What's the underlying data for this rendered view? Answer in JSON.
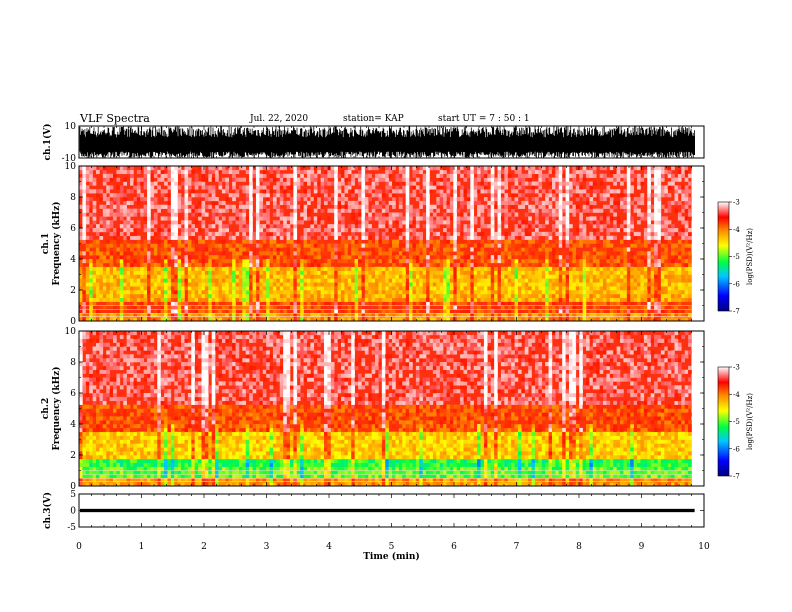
{
  "header": {
    "title": "VLF Spectra",
    "date": "Jul. 22, 2020",
    "station": "station= KAP",
    "start": "start  UT =   7 : 50 : 1"
  },
  "chart_data": [
    {
      "type": "line",
      "ylabel": "ch.1(V)",
      "ylim": [
        -10,
        10
      ],
      "y_ticks": [
        "10",
        "-10"
      ],
      "xlim": [
        0,
        10
      ],
      "series": [
        {
          "description": "ch.1 waveform envelope",
          "range": [
            -10,
            10
          ]
        }
      ]
    },
    {
      "type": "heatmap",
      "ylabel": "Frequency  (kHz)",
      "channel_label": "ch.1",
      "ylim": [
        0,
        10
      ],
      "y_ticks": [
        "0",
        "2",
        "4",
        "6",
        "8",
        "10"
      ],
      "xlim": [
        0,
        9.8
      ],
      "colorbar": {
        "label": "log(PSD)(V²/Hz)",
        "ticks": [
          "-3",
          "-4",
          "-5",
          "-6",
          "-7"
        ],
        "range": [
          -7,
          -3
        ]
      }
    },
    {
      "type": "heatmap",
      "ylabel": "Frequency  (kHz)",
      "channel_label": "ch.2",
      "ylim": [
        0,
        10
      ],
      "y_ticks": [
        "0",
        "2",
        "4",
        "6",
        "8",
        "10"
      ],
      "xlim": [
        0,
        9.8
      ],
      "colorbar": {
        "label": "log(PSD)(V²/Hz)",
        "ticks": [
          "-3",
          "-4",
          "-5",
          "-6",
          "-7"
        ],
        "range": [
          -7,
          -3
        ]
      }
    },
    {
      "type": "line",
      "ylabel": "ch.3(V)",
      "ylim": [
        -5,
        5
      ],
      "y_ticks": [
        "5",
        "0",
        "-5"
      ],
      "xlim": [
        0,
        10
      ],
      "series": [
        {
          "description": "ch.3 waveform band",
          "range": [
            -0.5,
            0.5
          ]
        }
      ]
    }
  ],
  "x_axis": {
    "label": "Time  (min)",
    "ticks": [
      "0",
      "1",
      "2",
      "3",
      "4",
      "5",
      "6",
      "7",
      "8",
      "9",
      "10"
    ],
    "range": [
      0,
      10
    ]
  },
  "colors": {
    "jet_scale": [
      "#000080",
      "#0000ff",
      "#00c0ff",
      "#00ff40",
      "#ffff00",
      "#ff8000",
      "#ff0000",
      "#ffffff"
    ]
  }
}
